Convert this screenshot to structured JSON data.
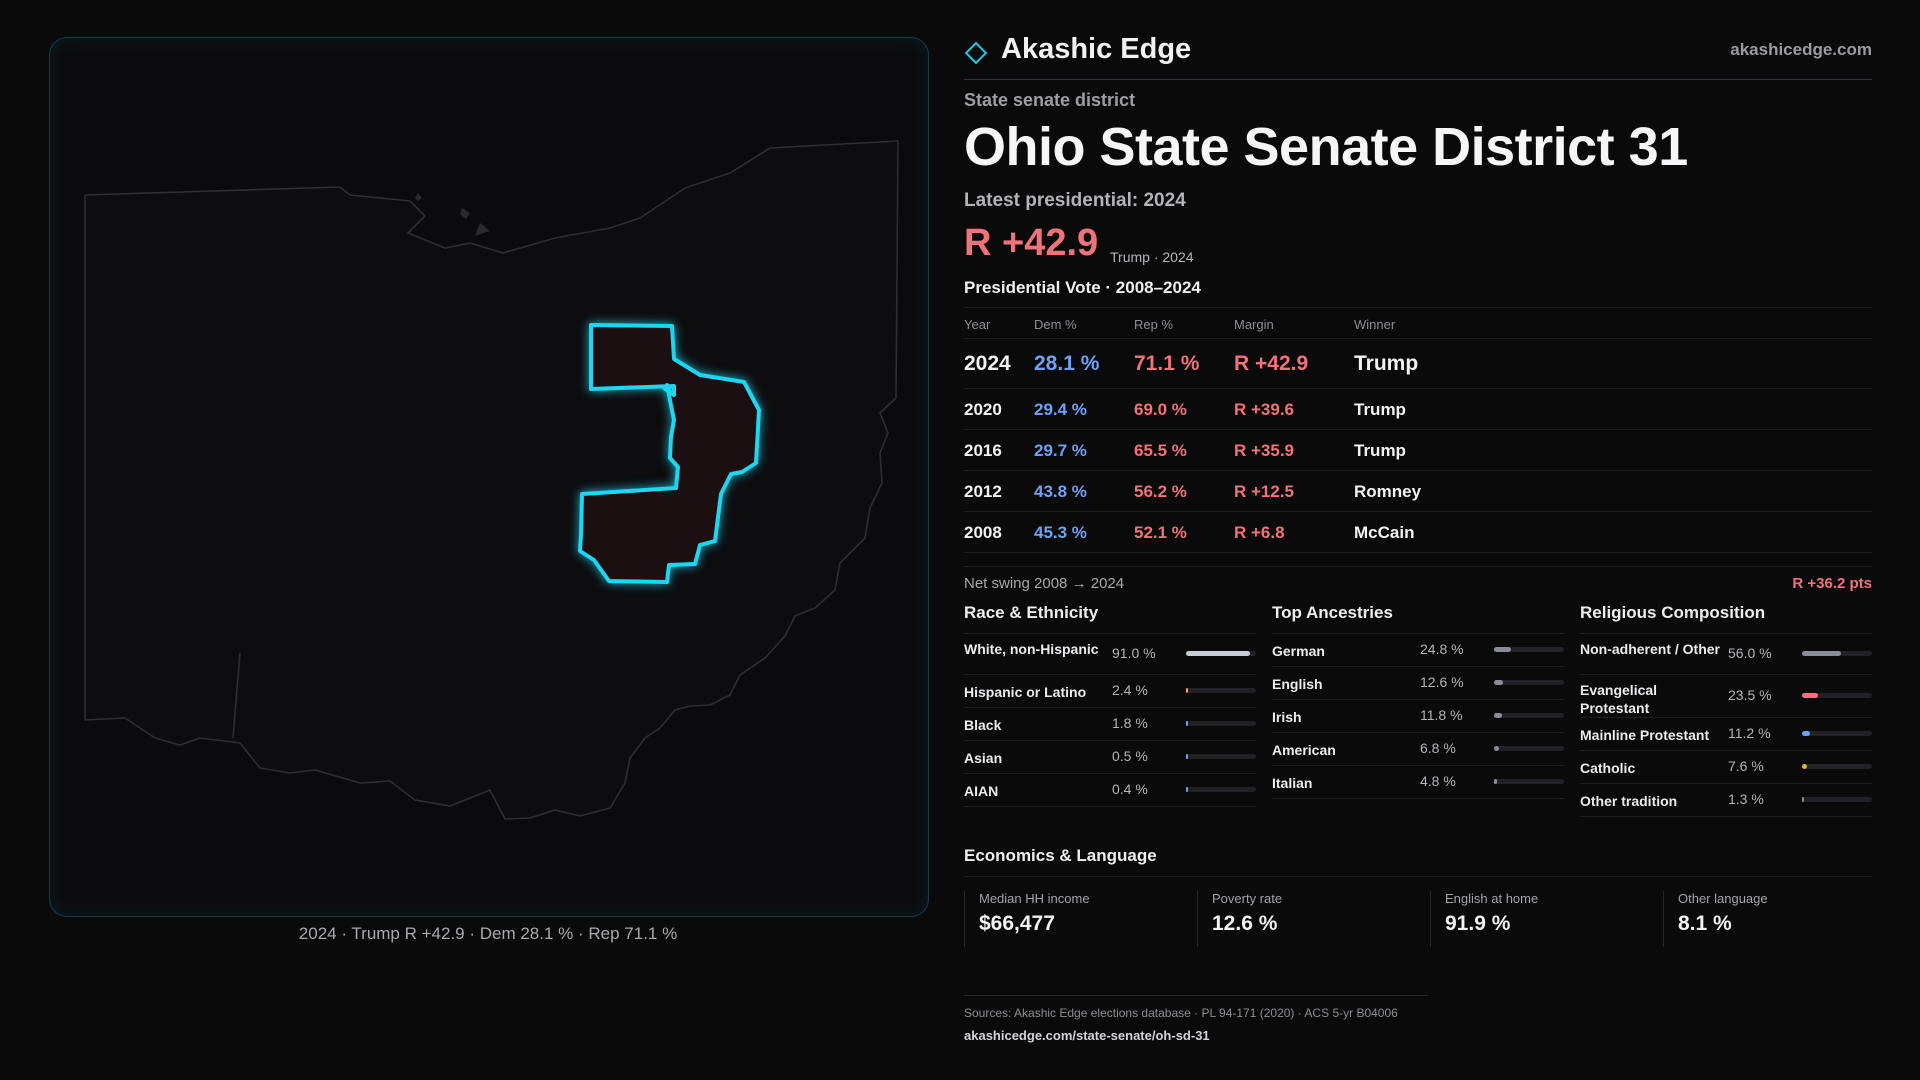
{
  "brand": {
    "name": "Akashic Edge",
    "url": "akashicedge.com",
    "logo_icon": "diamond-outline-icon",
    "accent": "#1fc7e0"
  },
  "header": {
    "kicker": "State senate district",
    "title": "Ohio State Senate District 31",
    "latest_label": "Latest presidential: 2024",
    "margin": "R +42.9",
    "margin_sub": "Trump · 2024"
  },
  "colors": {
    "dem": "#6ea2f5",
    "rep": "#f0727a",
    "district_outline": "#1fd6f0",
    "district_fill": "#1c0f12"
  },
  "vote_section": {
    "title": "Presidential Vote · 2008–2024",
    "headers": {
      "year": "Year",
      "dem": "Dem %",
      "rep": "Rep %",
      "margin": "Margin",
      "winner": "Winner"
    },
    "rows": [
      {
        "year": "2024",
        "dem": "28.1 %",
        "rep": "71.1 %",
        "margin": "R +42.9",
        "winner": "Trump"
      },
      {
        "year": "2020",
        "dem": "29.4 %",
        "rep": "69.0 %",
        "margin": "R +39.6",
        "winner": "Trump"
      },
      {
        "year": "2016",
        "dem": "29.7 %",
        "rep": "65.5 %",
        "margin": "R +35.9",
        "winner": "Trump"
      },
      {
        "year": "2012",
        "dem": "43.8 %",
        "rep": "56.2 %",
        "margin": "R +12.5",
        "winner": "Romney"
      },
      {
        "year": "2008",
        "dem": "45.3 %",
        "rep": "52.1 %",
        "margin": "R +6.8",
        "winner": "McCain"
      }
    ],
    "swing_label": "Net swing 2008 → 2024",
    "swing_value": "R +36.2 pts"
  },
  "race": {
    "title": "Race & Ethnicity",
    "rows": [
      {
        "label": "White, non-Hispanic",
        "value": "91.0 %",
        "level": 0.91,
        "color": "#c9ccd4"
      },
      {
        "label": "Hispanic or Latino",
        "value": "2.4 %",
        "level": 0.024,
        "color": "#f0a040"
      },
      {
        "label": "Black",
        "value": "1.8 %",
        "level": 0.018,
        "color": "#6ea2f5"
      },
      {
        "label": "Asian",
        "value": "0.5 %",
        "level": 0.005,
        "color": "#6ea2f5"
      },
      {
        "label": "AIAN",
        "value": "0.4 %",
        "level": 0.004,
        "color": "#6ea2f5"
      }
    ]
  },
  "ancestry": {
    "title": "Top Ancestries",
    "rows": [
      {
        "label": "German",
        "value": "24.8 %",
        "level": 0.248,
        "color": "#8a8d96"
      },
      {
        "label": "English",
        "value": "12.6 %",
        "level": 0.126,
        "color": "#8a8d96"
      },
      {
        "label": "Irish",
        "value": "11.8 %",
        "level": 0.118,
        "color": "#8a8d96"
      },
      {
        "label": "American",
        "value": "6.8 %",
        "level": 0.068,
        "color": "#8a8d96"
      },
      {
        "label": "Italian",
        "value": "4.8 %",
        "level": 0.048,
        "color": "#8a8d96"
      }
    ]
  },
  "religion": {
    "title": "Religious Composition",
    "rows": [
      {
        "label": "Non-adherent / Other",
        "value": "56.0 %",
        "level": 0.56,
        "color": "#8a8d96"
      },
      {
        "label": "Evangelical Protestant",
        "value": "23.5 %",
        "level": 0.235,
        "color": "#f0727a"
      },
      {
        "label": "Mainline Protestant",
        "value": "11.2 %",
        "level": 0.112,
        "color": "#6ea2f5"
      },
      {
        "label": "Catholic",
        "value": "7.6 %",
        "level": 0.076,
        "color": "#e0b040"
      },
      {
        "label": "Other tradition",
        "value": "1.3 %",
        "level": 0.013,
        "color": "#8a8d96"
      }
    ]
  },
  "economics": {
    "title": "Economics & Language",
    "cells": [
      {
        "label": "Median HH income",
        "value": "$66,477"
      },
      {
        "label": "Poverty rate",
        "value": "12.6 %"
      },
      {
        "label": "English at home",
        "value": "91.9 %"
      },
      {
        "label": "Other language",
        "value": "8.1 %"
      }
    ]
  },
  "map": {
    "caption": "2024 · Trump R +42.9 · Dem 28.1 % · Rep 71.1 %"
  },
  "sources": {
    "line": "Sources: Akashic Edge elections database · PL 94-171 (2020) · ACS 5-yr B04006",
    "url": "akashicedge.com/state-senate/oh-sd-31"
  }
}
